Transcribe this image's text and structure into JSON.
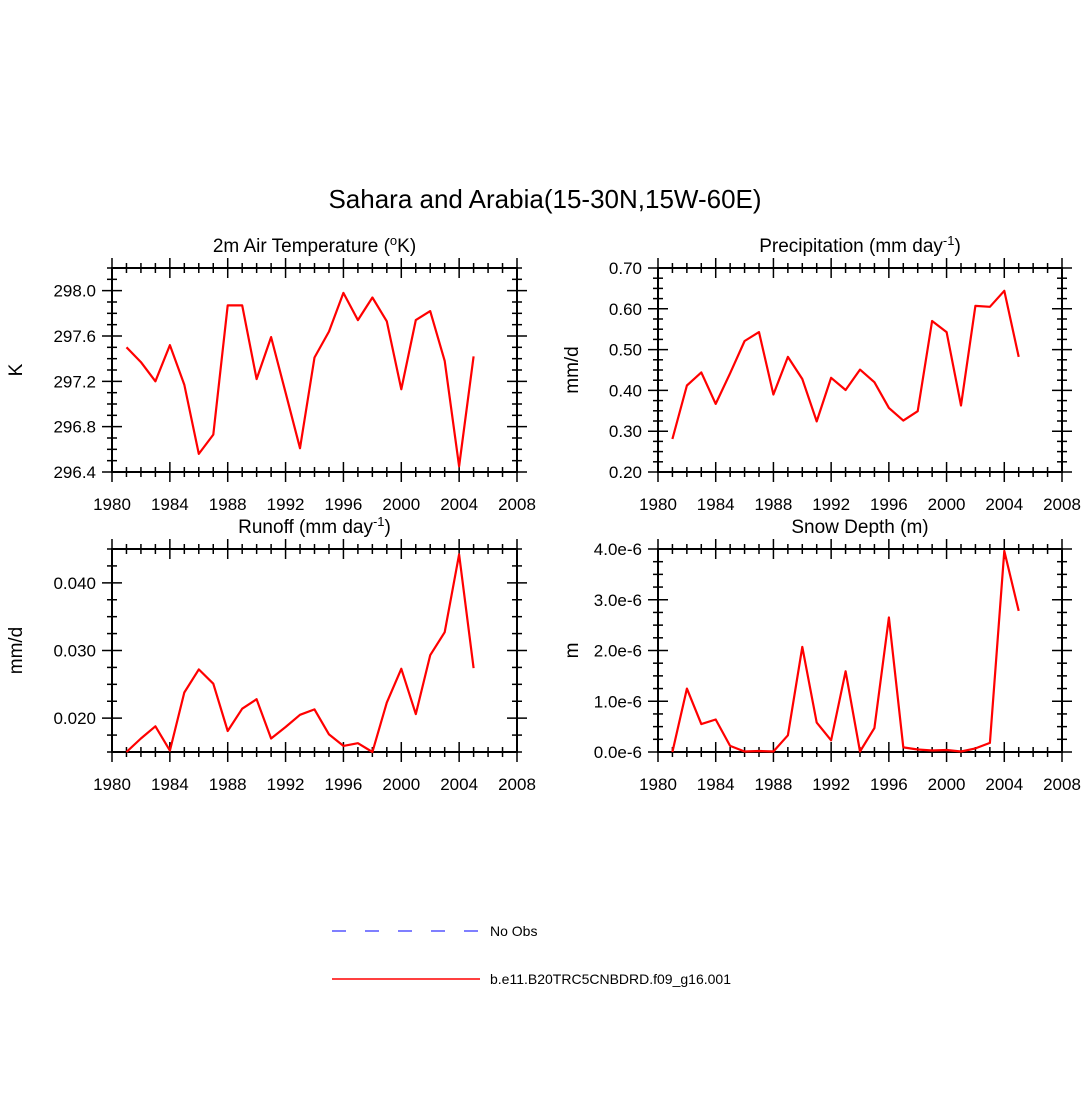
{
  "figure_title": "Sahara and Arabia(15-30N,15W-60E)",
  "legend": [
    {
      "label": "No Obs",
      "color": "#5555ff",
      "style": "dashed"
    },
    {
      "label": "b.e11.B20TRC5CNBDRD.f09_g16.001",
      "color": "#ff0000",
      "style": "solid"
    }
  ],
  "chart_data": [
    {
      "type": "line",
      "title": "2m Air Temperature (°K)",
      "xlabel": "",
      "ylabel": "K",
      "xlim": [
        1980,
        2008
      ],
      "ylim": [
        296.4,
        298.2
      ],
      "x_ticks": [
        1980,
        1984,
        1988,
        1992,
        1996,
        2000,
        2004,
        2008
      ],
      "y_ticks": [
        296.4,
        296.8,
        297.2,
        297.6,
        298.0
      ],
      "y_tick_labels": [
        "296.4",
        "296.8",
        "297.2",
        "297.6",
        "298.0"
      ],
      "series": [
        {
          "color": "#ff0000",
          "x": [
            1981,
            1982,
            1983,
            1984,
            1985,
            1986,
            1987,
            1988,
            1989,
            1990,
            1991,
            1992,
            1993,
            1994,
            1995,
            1996,
            1997,
            1998,
            1999,
            2000,
            2001,
            2002,
            2003,
            2004,
            2005
          ],
          "values": [
            297.5,
            297.37,
            297.2,
            297.52,
            297.17,
            296.56,
            296.73,
            297.87,
            297.87,
            297.22,
            297.59,
            297.1,
            296.61,
            297.41,
            297.64,
            297.98,
            297.74,
            297.94,
            297.73,
            297.13,
            297.74,
            297.82,
            297.38,
            296.45,
            297.42
          ]
        }
      ]
    },
    {
      "type": "line",
      "title": "Precipitation (mm day⁻¹)",
      "xlabel": "",
      "ylabel": "mm/d",
      "xlim": [
        1980,
        2008
      ],
      "ylim": [
        0.2,
        0.7
      ],
      "x_ticks": [
        1980,
        1984,
        1988,
        1992,
        1996,
        2000,
        2004,
        2008
      ],
      "y_ticks": [
        0.2,
        0.3,
        0.4,
        0.5,
        0.6,
        0.7
      ],
      "y_tick_labels": [
        "0.20",
        "0.30",
        "0.40",
        "0.50",
        "0.60",
        "0.70"
      ],
      "series": [
        {
          "color": "#ff0000",
          "x": [
            1981,
            1982,
            1983,
            1984,
            1985,
            1986,
            1987,
            1988,
            1989,
            1990,
            1991,
            1992,
            1993,
            1994,
            1995,
            1996,
            1997,
            1998,
            1999,
            2000,
            2001,
            2002,
            2003,
            2004,
            2005
          ],
          "values": [
            0.281,
            0.412,
            0.444,
            0.367,
            0.442,
            0.521,
            0.543,
            0.39,
            0.482,
            0.428,
            0.324,
            0.431,
            0.401,
            0.451,
            0.42,
            0.357,
            0.326,
            0.349,
            0.57,
            0.543,
            0.363,
            0.607,
            0.605,
            0.644,
            0.482
          ]
        }
      ]
    },
    {
      "type": "line",
      "title": "Runoff (mm day⁻¹)",
      "xlabel": "",
      "ylabel": "mm/d",
      "xlim": [
        1980,
        2008
      ],
      "ylim": [
        0.015,
        0.045
      ],
      "x_ticks": [
        1980,
        1984,
        1988,
        1992,
        1996,
        2000,
        2004,
        2008
      ],
      "y_ticks": [
        0.02,
        0.03,
        0.04
      ],
      "y_tick_labels": [
        "0.020",
        "0.030",
        "0.040"
      ],
      "series": [
        {
          "color": "#ff0000",
          "x": [
            1981,
            1982,
            1983,
            1984,
            1985,
            1986,
            1987,
            1988,
            1989,
            1990,
            1991,
            1992,
            1993,
            1994,
            1995,
            1996,
            1997,
            1998,
            1999,
            2000,
            2001,
            2002,
            2003,
            2004,
            2005
          ],
          "values": [
            0.015,
            0.017,
            0.0188,
            0.0152,
            0.0238,
            0.0272,
            0.0251,
            0.0181,
            0.0214,
            0.0228,
            0.017,
            0.0187,
            0.0205,
            0.0213,
            0.0176,
            0.0159,
            0.0163,
            0.015,
            0.0223,
            0.0273,
            0.0206,
            0.0293,
            0.0327,
            0.0442,
            0.0274
          ]
        }
      ]
    },
    {
      "type": "line",
      "title": "Snow Depth (m)",
      "xlabel": "",
      "ylabel": "m",
      "xlim": [
        1980,
        2008
      ],
      "ylim": [
        0.0,
        4e-06
      ],
      "x_ticks": [
        1980,
        1984,
        1988,
        1992,
        1996,
        2000,
        2004,
        2008
      ],
      "y_ticks": [
        0.0,
        1e-06,
        2e-06,
        3e-06,
        4e-06
      ],
      "y_tick_labels": [
        "0.0e-6",
        "1.0e-6",
        "2.0e-6",
        "3.0e-6",
        "4.0e-6"
      ],
      "series": [
        {
          "color": "#ff0000",
          "x": [
            1981,
            1982,
            1983,
            1984,
            1985,
            1986,
            1987,
            1988,
            1989,
            1990,
            1991,
            1992,
            1993,
            1994,
            1995,
            1996,
            1997,
            1998,
            1999,
            2000,
            2001,
            2002,
            2003,
            2004,
            2005
          ],
          "values": [
            0.0,
            1.25e-06,
            5.5e-07,
            6.4e-07,
            1.2e-07,
            1e-08,
            2e-08,
            1e-08,
            3.3e-07,
            2.07e-06,
            5.8e-07,
            2.3e-07,
            1.59e-06,
            1e-08,
            4.7e-07,
            2.65e-06,
            9e-08,
            5e-08,
            3e-08,
            4e-08,
            1e-08,
            7e-08,
            1.8e-07,
            3.96e-06,
            2.78e-06
          ]
        }
      ]
    }
  ]
}
